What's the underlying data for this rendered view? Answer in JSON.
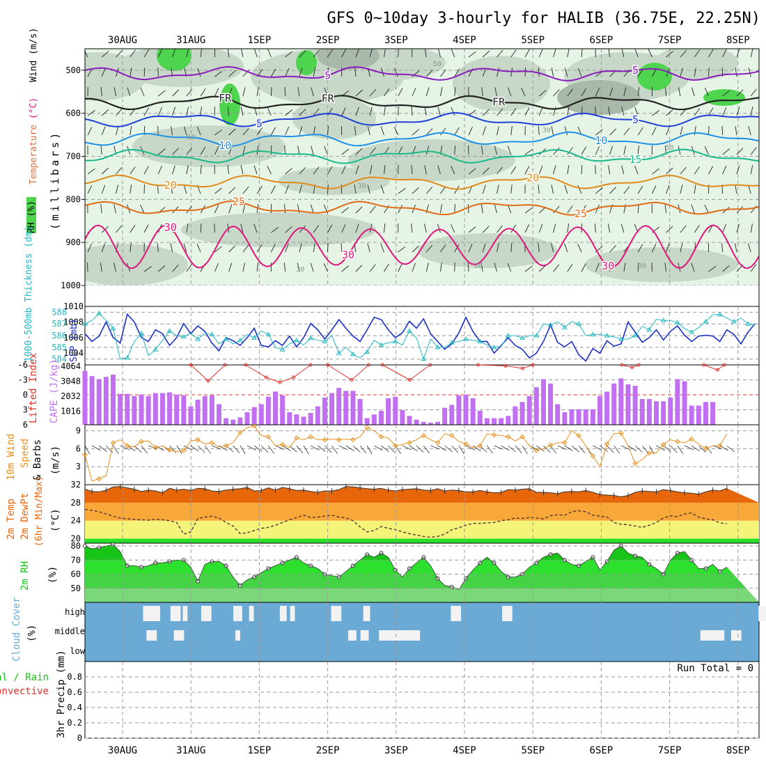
{
  "title": "GFS 0~10day 3-hourly for HALIB (36.75E, 22.25N)",
  "date_labels": [
    "30AUG",
    "31AUG",
    "1SEP",
    "2SEP",
    "3SEP",
    "4SEP",
    "5SEP",
    "6SEP",
    "7SEP",
    "8SEP"
  ],
  "colors": {
    "rh_light": "#e6f4e6",
    "rh_mid": "#c8d8c8",
    "rh_dark": "#a9b9a9",
    "rh_green": "#4fd44f",
    "temp_purple": "#8a1bbd",
    "temp_blue": "#1f3fd8",
    "temp_lightblue": "#1e90e8",
    "temp_teal": "#19b98a",
    "temp_orange": "#e08a1a",
    "temp_orange2": "#e06b12",
    "temp_magenta": "#e0157a",
    "slp": "#1a2fc8",
    "thickness": "#20b8c0",
    "cape": "#c070f0",
    "lifted": "#e0302a",
    "wind10m": "#e8901a",
    "t2m_dark": "#e8660a",
    "t2m_mid": "#f8a838",
    "t2m_light": "#f4f47a",
    "t2m_green": "#28e028",
    "rh2m_dark": "#17c417",
    "rh2m_mid": "#2ee02e",
    "rh2m_light": "#7ad77a",
    "cloud": "#6aaad4"
  },
  "chart_data": [
    {
      "name": "upper-air",
      "type": "contour",
      "ylabel_parts": [
        "RH (%)",
        "Temperature",
        " (°C)",
        "Wind",
        " (m/s)"
      ],
      "yunit": "(millibars)",
      "yticks": [
        500,
        600,
        700,
        800,
        900,
        1000
      ],
      "ylim": [
        450,
        1000
      ],
      "temp_isotherms": [
        {
          "label": "5",
          "level": 508,
          "color": "temp_purple",
          "labels_at": [
            3.0,
            7.5
          ]
        },
        {
          "label": "FR",
          "level": 575,
          "color": "#222222",
          "labels_at": [
            1.5,
            3.0,
            5.5
          ]
        },
        {
          "label": "5",
          "level": 615,
          "color": "temp_blue",
          "labels_at": [
            2.0,
            7.5
          ]
        },
        {
          "label": "10",
          "level": 660,
          "color": "temp_lightblue",
          "labels_at": [
            1.5,
            7.0
          ]
        },
        {
          "label": "15",
          "level": 700,
          "color": "temp_teal",
          "labels_at": [
            7.5
          ]
        },
        {
          "label": "20",
          "level": 760,
          "color": "temp_orange",
          "labels_at": [
            0.7,
            6.0
          ]
        },
        {
          "label": "25",
          "level": 820,
          "color": "temp_orange2",
          "labels_at": [
            1.7,
            6.7
          ]
        },
        {
          "label": "30",
          "level": 910,
          "color": "temp_magenta",
          "labels_at": [
            0.7,
            3.3,
            7.1
          ]
        }
      ],
      "rh_contour_labels": [
        "50",
        "50",
        "30",
        "50",
        "30",
        "30",
        "30",
        "30"
      ]
    },
    {
      "name": "slp-thickness",
      "type": "line",
      "ylabel": "1000-500mb Thickness (dm)",
      "y2label": "SLP (mb)",
      "ylim": [
        583.5,
        588.5
      ],
      "yticks": [
        584,
        585,
        586,
        587,
        588
      ],
      "y2lim": [
        1002.5,
        1010
      ],
      "y2ticks": [
        1004,
        1006,
        1008,
        1010
      ],
      "series": [
        {
          "name": "SLP (mb)",
          "axis": "right",
          "color": "slp",
          "values": [
            1006.5,
            1005.5,
            1006.2,
            1008,
            1006,
            1005.3,
            1009,
            1008,
            1006,
            1005.5,
            1007,
            1006.5,
            1005,
            1006,
            1007.8,
            1006.5,
            1007.5,
            1006.8,
            1005.3,
            1004.3,
            1006,
            1005.6,
            1005,
            1006,
            1007.2,
            1005,
            1004.8,
            1005.6,
            1005,
            1006.2,
            1004.8,
            1006,
            1007.8,
            1007,
            1005.8,
            1007,
            1008.3,
            1007.2,
            1006.2,
            1005.5,
            1007,
            1008.6,
            1008.3,
            1007,
            1006,
            1006.6,
            1008.1,
            1007.2,
            1008.4,
            1006.5,
            1005.5,
            1004.5,
            1005.2,
            1006.6,
            1008.6,
            1006.8,
            1005.5,
            1005.5,
            1004,
            1005,
            1006,
            1005,
            1004.5,
            1003.4,
            1004,
            1005.5,
            1007.6,
            1005.4,
            1004.8,
            1005.5,
            1003.8,
            1003,
            1004.6,
            1004,
            1005.6,
            1004.9,
            1005.2,
            1008,
            1006.7,
            1005.4,
            1006,
            1007,
            1005.7,
            1006.8,
            1007.5,
            1006.3,
            1005.5,
            1006.2,
            1006.3,
            1006.2,
            1005.5,
            1007,
            1006.4,
            1005.2,
            1006.7,
            1007.8
          ]
        },
        {
          "name": "Thickness (dm)",
          "axis": "left",
          "color": "thickness",
          "values": [
            587,
            587.3,
            587.9,
            587.3,
            586.6,
            584,
            584.1,
            585.5,
            586.2,
            584.3,
            584.8,
            585.6,
            586.4,
            586,
            585.9,
            586.2,
            585.7,
            586.2,
            586.1,
            585.3,
            585.7,
            585.3,
            585.6,
            586.1,
            585.8,
            586.4,
            586.1,
            585,
            584.8,
            585.3,
            585.6,
            585.2,
            585.8,
            585.6,
            585.5,
            586,
            584.5,
            585,
            584.4,
            584.1,
            584.6,
            585.6,
            585.2,
            585.4,
            585.5,
            585.2,
            586.4,
            585.8,
            584,
            585.7,
            585,
            585,
            585.4,
            585.5,
            585.7,
            585.6,
            585.5,
            585.2,
            585,
            585.1,
            586,
            586,
            585.8,
            586,
            586,
            587,
            586.9,
            587.2,
            586.7,
            587.2,
            587,
            586,
            586.1,
            586.1,
            586,
            585.9,
            585.7,
            585.7,
            586,
            586.8,
            586.5,
            587.4,
            587.3,
            587.3,
            587.1,
            586.6,
            586.3,
            586.7,
            587.2,
            587.8,
            587.8,
            587.5,
            587.2,
            587.5,
            587,
            586.9
          ]
        }
      ]
    },
    {
      "name": "cape-li",
      "type": "bar",
      "ylabel": "Lifted Index",
      "y2label": "CAPE (J/kg)",
      "yticks": [
        -6,
        -3,
        0,
        3,
        6
      ],
      "ytick_labels": [
        "-6",
        "-3",
        "0",
        "3",
        "6"
      ],
      "y2ticks": [
        1016,
        2032,
        3048,
        4064
      ],
      "ylim_cape": [
        0,
        4064
      ],
      "cape_values": [
        3650,
        3300,
        3100,
        3250,
        3400,
        2100,
        2100,
        1950,
        2050,
        1950,
        2150,
        2150,
        2200,
        2050,
        2000,
        1250,
        1700,
        1950,
        2000,
        1400,
        450,
        350,
        500,
        850,
        1200,
        1400,
        1900,
        2250,
        2000,
        850,
        700,
        550,
        800,
        1250,
        1850,
        2150,
        2500,
        2300,
        2300,
        1750,
        450,
        700,
        950,
        1800,
        1900,
        1000,
        600,
        350,
        200,
        150,
        200,
        1150,
        1350,
        2000,
        2050,
        1800,
        950,
        450,
        450,
        450,
        600,
        1250,
        1550,
        1950,
        2550,
        3100,
        2800,
        1400,
        850,
        1050,
        1050,
        1050,
        1050,
        1950,
        2250,
        2800,
        3150,
        2750,
        2650,
        1750,
        1750,
        1600,
        1600,
        1850,
        3100,
        2950,
        1300,
        1300,
        1550,
        1550
      ],
      "li_values": [
        -6,
        -6,
        -6,
        -6,
        -6,
        -6,
        -6,
        -6,
        -6,
        -6,
        -6,
        -6,
        -6,
        -6,
        -6,
        -6,
        -6,
        -6,
        -6,
        -6,
        -6,
        -6,
        -4.5,
        -6,
        -6,
        -6,
        -6,
        -6,
        -6,
        -6,
        -6,
        -6,
        -6,
        -6,
        -6,
        -6,
        -6,
        -6,
        -6,
        -6,
        -6,
        -6,
        -6,
        -6,
        -6,
        -6,
        -6,
        -6,
        -6,
        -6,
        -6,
        -6,
        -6,
        -6,
        -6,
        -6,
        -6,
        -6,
        -6,
        -6,
        -6,
        -6,
        -6,
        -6,
        -6,
        -6,
        -6,
        -6,
        -6,
        -6,
        -6,
        -6,
        -6,
        -6,
        -6,
        -6,
        -6,
        -6,
        -6,
        -6,
        -6,
        -6,
        -6,
        -6,
        -6,
        -6,
        -6,
        -6,
        -6,
        -6
      ],
      "li_dips": [
        {
          "at": [
            1.0,
            1.25,
            1.5
          ],
          "values": [
            -6,
            -2.8,
            -6
          ]
        },
        {
          "at": [
            1.8,
            2.1,
            2.3,
            2.5,
            2.75
          ],
          "values": [
            -6,
            -3.5,
            -2.5,
            -3.5,
            -6
          ]
        },
        {
          "at": [
            3.0,
            3.35,
            3.6
          ],
          "values": [
            -6,
            -3,
            -6
          ]
        },
        {
          "at": [
            3.8,
            4.2,
            4.5
          ],
          "values": [
            -6,
            -3,
            -6
          ]
        },
        {
          "at": [
            5.2,
            5.6,
            5.85,
            6.0
          ],
          "values": [
            -6,
            -5.8,
            -5.3,
            -6
          ]
        },
        {
          "at": [
            7.3,
            7.45,
            7.55
          ],
          "values": [
            -6,
            -5.5,
            -6
          ]
        },
        {
          "at": [
            8.5,
            8.7,
            8.8
          ],
          "values": [
            -6,
            -5,
            -6
          ]
        }
      ]
    },
    {
      "name": "wind10m",
      "type": "line",
      "ylabel_parts": [
        "10m Wind",
        "Speed",
        "& Barbs",
        "(m/s)"
      ],
      "ylim": [
        0,
        10
      ],
      "yticks": [
        3,
        6,
        9
      ],
      "values": [
        5,
        0.6,
        1,
        1.5,
        7,
        7.5,
        6.5,
        6.3,
        7.2,
        7.3,
        6.2,
        6.5,
        5.8,
        5.5,
        5.7,
        7.3,
        7.5,
        6.8,
        7,
        6.3,
        6.5,
        7,
        8.7,
        9.5,
        9.8,
        8.2,
        8,
        6.5,
        6.7,
        6.2,
        7.8,
        7.5,
        8,
        7.5,
        7.5,
        7.6,
        7.5,
        7.6,
        7.5,
        8,
        9.5,
        9,
        8,
        7.8,
        6.5,
        6.7,
        7,
        7.5,
        8.2,
        7.5,
        7,
        8.5,
        8.2,
        7.2,
        6.8,
        6.2,
        6.5,
        8.5,
        8.3,
        8.2,
        8,
        7.3,
        8,
        6.5,
        5.7,
        6,
        6.6,
        7,
        7,
        9,
        8.2,
        6.5,
        4.8,
        3,
        6.8,
        8.5,
        8.6,
        6.5,
        3.5,
        4.2,
        5.3,
        5.3,
        6.7,
        7.5,
        7.2,
        7,
        7.6,
        6.8,
        6,
        6.5,
        6.5,
        8.5
      ]
    },
    {
      "name": "t2m",
      "type": "area",
      "ylabel_parts": [
        "2m Temp",
        "2m DewPt",
        "(6hr Min/Max)",
        "(°C)"
      ],
      "ylim": [
        19,
        32
      ],
      "yticks": [
        20,
        24,
        28,
        32
      ],
      "temp_values": [
        31,
        30.5,
        30.4,
        30.8,
        31.5,
        31.6,
        31.3,
        31,
        30.5,
        30.8,
        30.6,
        30.2,
        31.2,
        30.8,
        31,
        30.7,
        31.2,
        31.1,
        30.6,
        30.5,
        30.8,
        31,
        31.1,
        31.4,
        30.6,
        30.7,
        31.3,
        30.8,
        31.4,
        31.1,
        30.7,
        30.8,
        30.5,
        30.3,
        30.6,
        30.6,
        30.9,
        31.6,
        31.5,
        31.3,
        31.1,
        31,
        31.2,
        30.8,
        30.6,
        30.9,
        31,
        31.1,
        30.8,
        30.7,
        31.1,
        30.6,
        30.8,
        30.7,
        30.4,
        30.4,
        30.7,
        30.4,
        30.2,
        30.3,
        30.9,
        30.8,
        31,
        31.1,
        30.3,
        30.3,
        30.2,
        30,
        30.4,
        30.5,
        30.4,
        30.7,
        30.3,
        29.8,
        29.7,
        29.6,
        29.3,
        29.6,
        30.3,
        30.6,
        30.5,
        30.4,
        30.9,
        30.7,
        30.4,
        30.2,
        30.1,
        29.9,
        30.4,
        30.8,
        30.6,
        31.2
      ],
      "dewpoint_values": [
        26.5,
        26.3,
        26,
        25.5,
        25,
        24.6,
        24.4,
        24.3,
        24.2,
        24.1,
        24.3,
        24.2,
        24,
        23.6,
        21,
        21.5,
        24.5,
        24.8,
        25,
        24.6,
        23.6,
        22.8,
        21.1,
        21.3,
        21.8,
        22.3,
        22.5,
        23,
        23.6,
        24.2,
        24.7,
        25.2,
        24.7,
        24.8,
        25,
        25.2,
        24.8,
        24.6,
        24,
        22.6,
        21.5,
        21.8,
        22.7,
        22.3,
        22,
        21.5,
        21.1,
        20.8,
        20.5,
        20.3,
        20.5,
        21,
        22,
        22.4,
        23,
        23.4,
        23.4,
        23.5,
        23.6,
        24,
        24.2,
        24.6,
        24.5,
        24.7,
        24.6,
        24.4,
        25.1,
        25.3,
        25.2,
        26,
        26.2,
        26,
        25.2,
        25,
        24.8,
        23.6,
        23.2,
        23.1,
        22.8,
        22.5,
        23,
        23.6,
        24.6,
        25.1,
        24.9,
        25.5,
        25.7,
        24.8,
        24.4,
        24.2,
        23.5,
        23.3
      ]
    },
    {
      "name": "rh2m",
      "type": "area",
      "ylabel": "2m RH",
      "yunit": "(%)",
      "ylim": [
        40,
        82
      ],
      "yticks": [
        50,
        60,
        70,
        80
      ],
      "values": [
        80,
        78,
        79,
        80,
        81,
        76,
        66,
        66,
        65,
        66,
        68,
        68,
        69,
        70,
        70,
        65,
        55,
        67,
        69,
        69,
        66,
        58,
        52,
        56,
        58,
        61,
        64,
        66,
        68,
        70,
        72,
        68,
        66,
        64,
        60,
        59,
        58,
        62,
        66,
        70,
        74,
        72,
        75,
        72,
        63,
        58,
        64,
        68,
        72,
        66,
        57,
        52,
        51,
        49,
        57,
        63,
        68,
        72,
        68,
        62,
        58,
        58,
        60,
        65,
        68,
        72,
        74,
        75,
        70,
        67,
        66,
        69,
        72,
        63,
        69,
        77,
        80,
        75,
        73,
        72,
        67,
        64,
        60,
        70,
        75,
        76,
        70,
        64,
        64,
        67,
        62,
        65
      ]
    },
    {
      "name": "cloud",
      "type": "heatmap",
      "ylabel": "Cloud Cover",
      "yunit": "(%)",
      "levels": [
        "high",
        "middle",
        "low"
      ],
      "high_blocks": [
        [
          0.3,
          0.55
        ],
        [
          0.7,
          0.85
        ],
        [
          0.88,
          0.95
        ],
        [
          1.15,
          1.3
        ],
        [
          1.62,
          1.75
        ],
        [
          1.85,
          1.92
        ],
        [
          2.3,
          2.4
        ],
        [
          2.45,
          2.52
        ],
        [
          3.05,
          3.2
        ],
        [
          3.52,
          3.62
        ],
        [
          4.8,
          4.95
        ],
        [
          5.55,
          5.7
        ],
        [
          9.3,
          9.6
        ]
      ],
      "middle_blocks": [
        [
          0.35,
          0.5
        ],
        [
          0.75,
          0.9
        ],
        [
          1.65,
          1.72
        ],
        [
          3.3,
          3.42
        ],
        [
          3.48,
          3.6
        ],
        [
          3.75,
          4.35
        ],
        [
          8.45,
          8.8
        ],
        [
          8.9,
          9.05
        ]
      ],
      "low_blocks": []
    },
    {
      "name": "precip",
      "type": "bar",
      "ylabel_parts": [
        "Total / Rain",
        "Convective",
        "3hr Precip (mm)"
      ],
      "ylim": [
        0,
        1
      ],
      "yticks": [
        0,
        0.2,
        0.4,
        0.6,
        0.8
      ],
      "run_total": "Run Total = 0",
      "values": []
    }
  ]
}
